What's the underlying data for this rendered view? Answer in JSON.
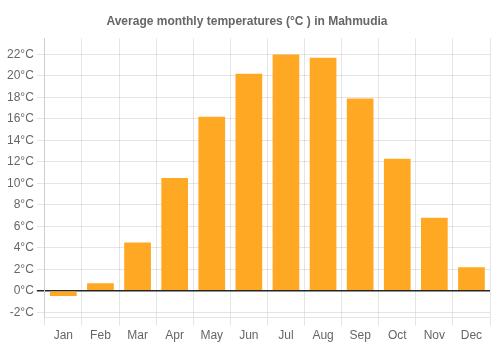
{
  "chart_data": {
    "type": "bar",
    "title": "Average monthly temperatures (°C ) in Mahmudia",
    "categories": [
      "Jan",
      "Feb",
      "Mar",
      "Apr",
      "May",
      "Jun",
      "Jul",
      "Aug",
      "Sep",
      "Oct",
      "Nov",
      "Dec"
    ],
    "values": [
      -0.5,
      0.7,
      4.5,
      10.5,
      16.2,
      20.2,
      22.0,
      21.7,
      17.9,
      12.3,
      6.8,
      2.2
    ],
    "color": "#FFA823",
    "ylim": [
      -2.5,
      23.5
    ],
    "yticks": [
      {
        "value": -2,
        "label": "-2°C"
      },
      {
        "value": 0,
        "label": "0°C"
      },
      {
        "value": 2,
        "label": "2°C"
      },
      {
        "value": 4,
        "label": "4°C"
      },
      {
        "value": 6,
        "label": "6°C"
      },
      {
        "value": 8,
        "label": "8°C"
      },
      {
        "value": 10,
        "label": "10°C"
      },
      {
        "value": 12,
        "label": "12°C"
      },
      {
        "value": 14,
        "label": "14°C"
      },
      {
        "value": 16,
        "label": "16°C"
      },
      {
        "value": 18,
        "label": "18°C"
      },
      {
        "value": 20,
        "label": "20°C"
      },
      {
        "value": 22,
        "label": "22°C"
      }
    ],
    "grid": true
  }
}
